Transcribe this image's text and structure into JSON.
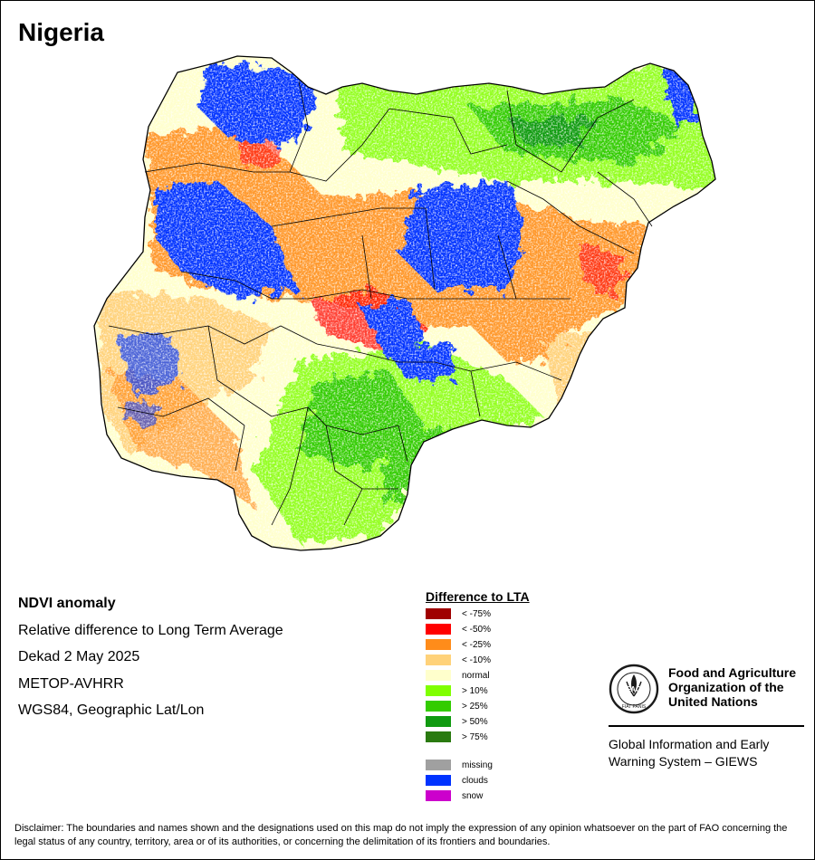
{
  "title": "Nigeria",
  "map_info": {
    "product": "NDVI anomaly",
    "description": "Relative difference to Long Term Average",
    "period": "Dekad 2 May 2025",
    "sensor": "METOP-AVHRR",
    "projection": "WGS84, Geographic Lat/Lon"
  },
  "legend": {
    "title": "Difference to LTA",
    "classes": [
      {
        "label": "< -75%",
        "color": "#a00000"
      },
      {
        "label": "< -50%",
        "color": "#ff0000"
      },
      {
        "label": "< -25%",
        "color": "#ff8c1a"
      },
      {
        "label": "< -10%",
        "color": "#ffd27a"
      },
      {
        "label": "normal",
        "color": "#ffffcc"
      },
      {
        "label": "> 10%",
        "color": "#80ff00"
      },
      {
        "label": "> 25%",
        "color": "#33cc00"
      },
      {
        "label": "> 50%",
        "color": "#109a10"
      },
      {
        "label": "> 75%",
        "color": "#2a7a10"
      }
    ],
    "extra": [
      {
        "label": "missing",
        "color": "#a0a0a0"
      },
      {
        "label": "clouds",
        "color": "#0033ff"
      },
      {
        "label": "snow",
        "color": "#cc00cc"
      }
    ]
  },
  "org": {
    "name_line1": "Food and Agriculture",
    "name_line2": "Organization of the",
    "name_line3": "United Nations",
    "logo_letters": "FAO",
    "logo_motto": "FIAT PANIS",
    "system_line1": "Global Information and Early",
    "system_line2": "Warning System – GIEWS"
  },
  "disclaimer": "Disclaimer: The boundaries and names shown and the designations used on this map do not imply the expression of any opinion whatsoever on the part of FAO concerning the legal status of any country, territory, area or of its authorities, or concerning the delimitation of its frontiers and boundaries."
}
